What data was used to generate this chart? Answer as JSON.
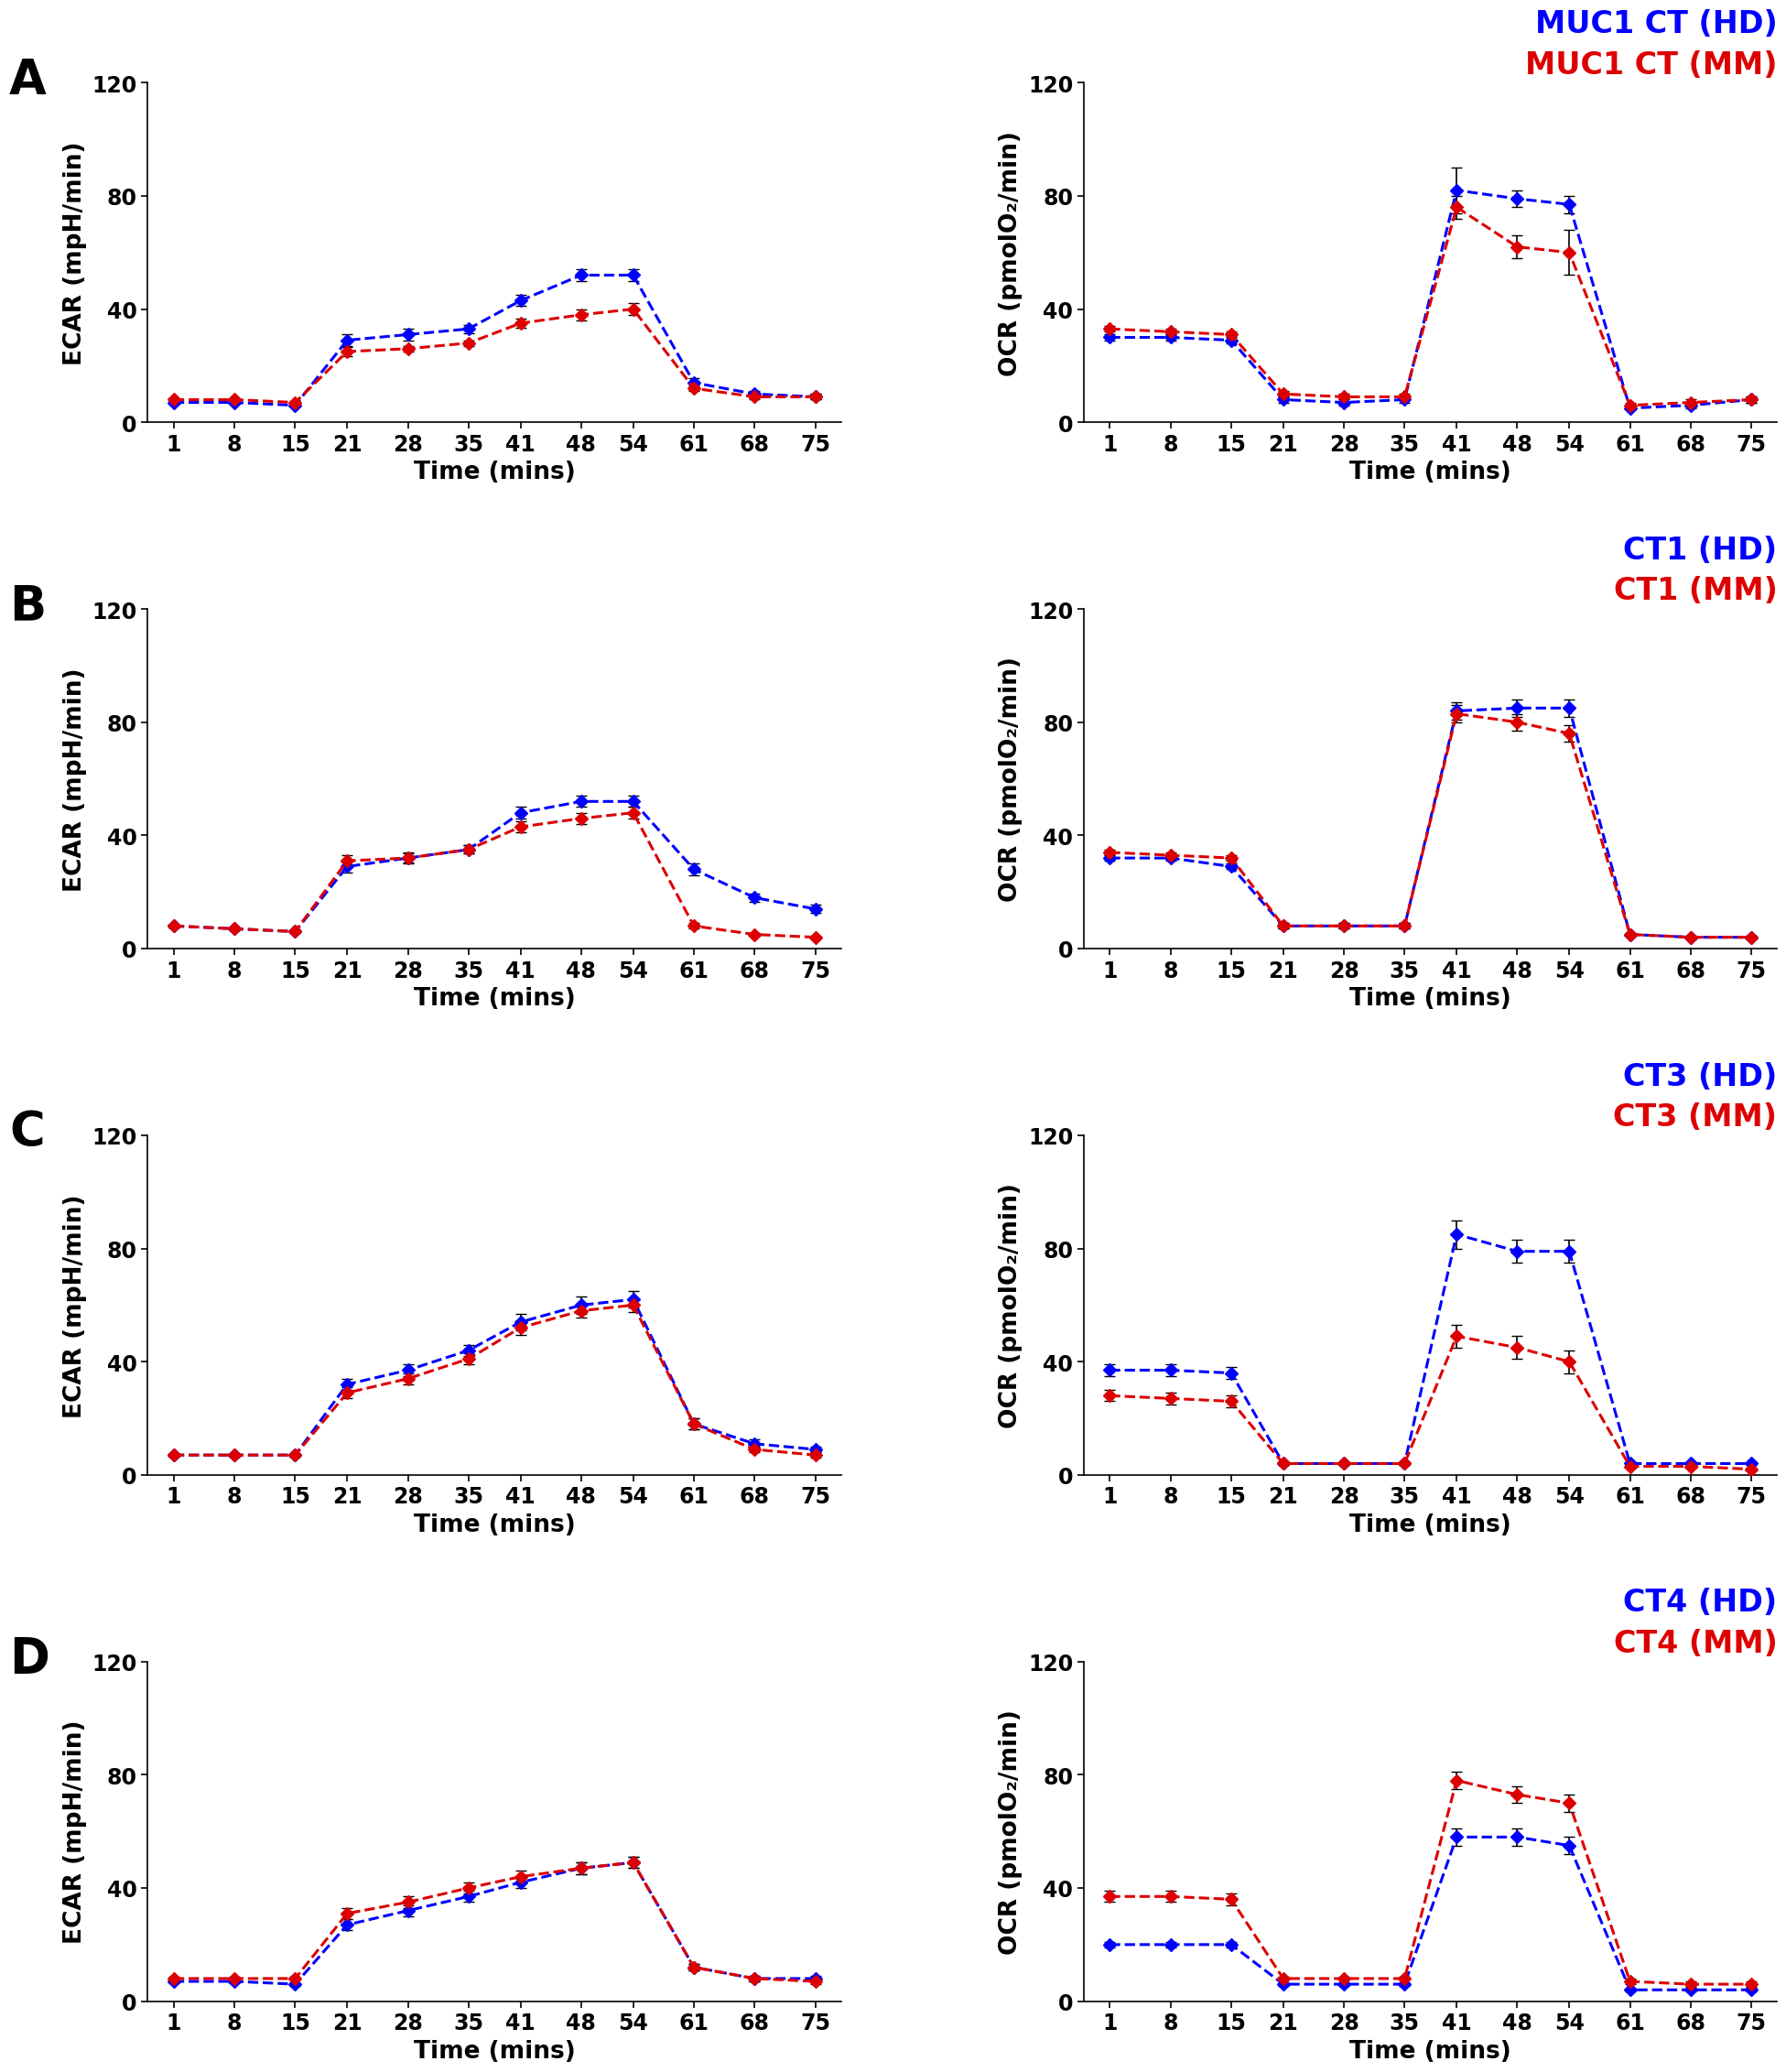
{
  "time_points": [
    1,
    8,
    15,
    21,
    28,
    35,
    41,
    48,
    54,
    61,
    68,
    75
  ],
  "panels": [
    {
      "label": "A",
      "legend_label1": "MUC1 CT (HD)",
      "legend_label2": "MUC1 CT (MM)",
      "ecar_hd": [
        7,
        7,
        6,
        29,
        31,
        33,
        43,
        52,
        52,
        14,
        10,
        9
      ],
      "ecar_hd_err": [
        0.5,
        0.5,
        0.5,
        2,
        2,
        1.5,
        2,
        2,
        2,
        1.5,
        1,
        1
      ],
      "ecar_mm": [
        8,
        8,
        7,
        25,
        26,
        28,
        35,
        38,
        40,
        12,
        9,
        9
      ],
      "ecar_mm_err": [
        0.5,
        0.5,
        0.5,
        1.5,
        1,
        1,
        1.5,
        2,
        2,
        1,
        1,
        1
      ],
      "ocr_hd": [
        30,
        30,
        29,
        8,
        7,
        8,
        82,
        79,
        77,
        5,
        6,
        8
      ],
      "ocr_hd_err": [
        1,
        1,
        1,
        1,
        1,
        1,
        8,
        3,
        3,
        0.5,
        1,
        1
      ],
      "ocr_mm": [
        33,
        32,
        31,
        10,
        9,
        9,
        76,
        62,
        60,
        6,
        7,
        8
      ],
      "ocr_mm_err": [
        1,
        1,
        1,
        1,
        1,
        1,
        4,
        4,
        8,
        1,
        1,
        1
      ]
    },
    {
      "label": "B",
      "legend_label1": "CT1 (HD)",
      "legend_label2": "CT1 (MM)",
      "ecar_hd": [
        8,
        7,
        6,
        29,
        32,
        35,
        48,
        52,
        52,
        28,
        18,
        14
      ],
      "ecar_hd_err": [
        0.5,
        0.5,
        0.5,
        2,
        2,
        1.5,
        2,
        2,
        2,
        2,
        1.5,
        1.5
      ],
      "ecar_mm": [
        8,
        7,
        6,
        31,
        32,
        35,
        43,
        46,
        48,
        8,
        5,
        4
      ],
      "ecar_mm_err": [
        0.5,
        0.5,
        0.5,
        2,
        1.5,
        1.5,
        2,
        2,
        2,
        1,
        0.5,
        0.5
      ],
      "ocr_hd": [
        32,
        32,
        29,
        8,
        8,
        8,
        84,
        85,
        85,
        5,
        4,
        4
      ],
      "ocr_hd_err": [
        1,
        1,
        1,
        1,
        1,
        1,
        3,
        3,
        3,
        0.5,
        0.5,
        0.5
      ],
      "ocr_mm": [
        34,
        33,
        32,
        8,
        8,
        8,
        83,
        80,
        76,
        5,
        4,
        4
      ],
      "ocr_mm_err": [
        1,
        1,
        1,
        1,
        1,
        1,
        3,
        3,
        3,
        0.5,
        0.5,
        0.5
      ]
    },
    {
      "label": "C",
      "legend_label1": "CT3 (HD)",
      "legend_label2": "CT3 (MM)",
      "ecar_hd": [
        7,
        7,
        7,
        32,
        37,
        44,
        54,
        60,
        62,
        18,
        11,
        9
      ],
      "ecar_hd_err": [
        0.5,
        0.5,
        0.5,
        2,
        2,
        2,
        3,
        3,
        3,
        2,
        1.5,
        1
      ],
      "ecar_mm": [
        7,
        7,
        7,
        29,
        34,
        41,
        52,
        58,
        60,
        18,
        9,
        7
      ],
      "ecar_mm_err": [
        0.5,
        0.5,
        0.5,
        2,
        2,
        2,
        2.5,
        2.5,
        2.5,
        2,
        1,
        1
      ],
      "ocr_hd": [
        37,
        37,
        36,
        4,
        4,
        4,
        85,
        79,
        79,
        4,
        4,
        4
      ],
      "ocr_hd_err": [
        2,
        2,
        2,
        0.5,
        0.5,
        0.5,
        5,
        4,
        4,
        0.5,
        0.5,
        0.5
      ],
      "ocr_mm": [
        28,
        27,
        26,
        4,
        4,
        4,
        49,
        45,
        40,
        3,
        3,
        2
      ],
      "ocr_mm_err": [
        2,
        2,
        2,
        0.5,
        0.5,
        0.5,
        4,
        4,
        4,
        0.5,
        0.5,
        0.5
      ]
    },
    {
      "label": "D",
      "legend_label1": "CT4 (HD)",
      "legend_label2": "CT4 (MM)",
      "ecar_hd": [
        7,
        7,
        6,
        27,
        32,
        37,
        42,
        47,
        49,
        12,
        8,
        8
      ],
      "ecar_hd_err": [
        0.5,
        0.5,
        0.5,
        2,
        2,
        2,
        2,
        2,
        2,
        1,
        1,
        1
      ],
      "ecar_mm": [
        8,
        8,
        8,
        31,
        35,
        40,
        44,
        47,
        49,
        12,
        8,
        7
      ],
      "ecar_mm_err": [
        0.5,
        0.5,
        0.5,
        2,
        2,
        2,
        2,
        2,
        2,
        1,
        1,
        1
      ],
      "ocr_hd": [
        20,
        20,
        20,
        6,
        6,
        6,
        58,
        58,
        55,
        4,
        4,
        4
      ],
      "ocr_hd_err": [
        1,
        1,
        1,
        0.5,
        0.5,
        0.5,
        3,
        3,
        3,
        0.5,
        0.5,
        0.5
      ],
      "ocr_mm": [
        37,
        37,
        36,
        8,
        8,
        8,
        78,
        73,
        70,
        7,
        6,
        6
      ],
      "ocr_mm_err": [
        2,
        2,
        2,
        0.5,
        0.5,
        0.5,
        3,
        3,
        3,
        1,
        1,
        1
      ]
    }
  ],
  "blue_color": "#0000FF",
  "red_color": "#DD0000",
  "ecar_ylabel": "ECAR (mpH/min)",
  "ocr_ylabel": "OCR (pmolO₂/min)",
  "xlabel": "Time (mins)",
  "ylim_ecar": [
    0,
    120
  ],
  "ylim_ocr": [
    0,
    120
  ],
  "yticks": [
    0,
    40,
    80,
    120
  ],
  "xticks": [
    1,
    8,
    15,
    21,
    28,
    35,
    41,
    48,
    54,
    61,
    68,
    75
  ],
  "marker": "D",
  "markersize": 7,
  "linewidth": 2.2,
  "linestyle": "--",
  "capsize": 4,
  "tick_fontsize": 17,
  "axis_label_fontsize": 19,
  "legend_fontsize": 24,
  "panel_label_fontsize": 38
}
